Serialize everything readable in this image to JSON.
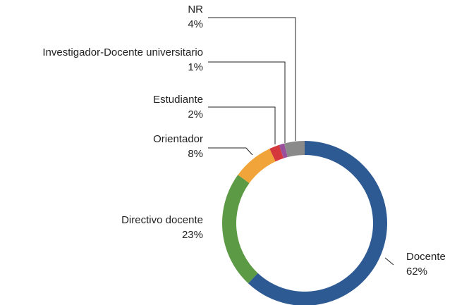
{
  "chart_data": {
    "type": "donut",
    "categories": [
      "Docente",
      "Directivo docente",
      "Orientador",
      "Estudiante",
      "Investigador-Docente universitario",
      "NR"
    ],
    "values": [
      62,
      23,
      8,
      2,
      1,
      4
    ],
    "value_labels": [
      "62%",
      "23%",
      "8%",
      "2%",
      "1%",
      "4%"
    ],
    "colors": [
      "#2e5a94",
      "#5d9a45",
      "#f0a43a",
      "#d4373c",
      "#9a4f9c",
      "#8a8a8a"
    ]
  }
}
